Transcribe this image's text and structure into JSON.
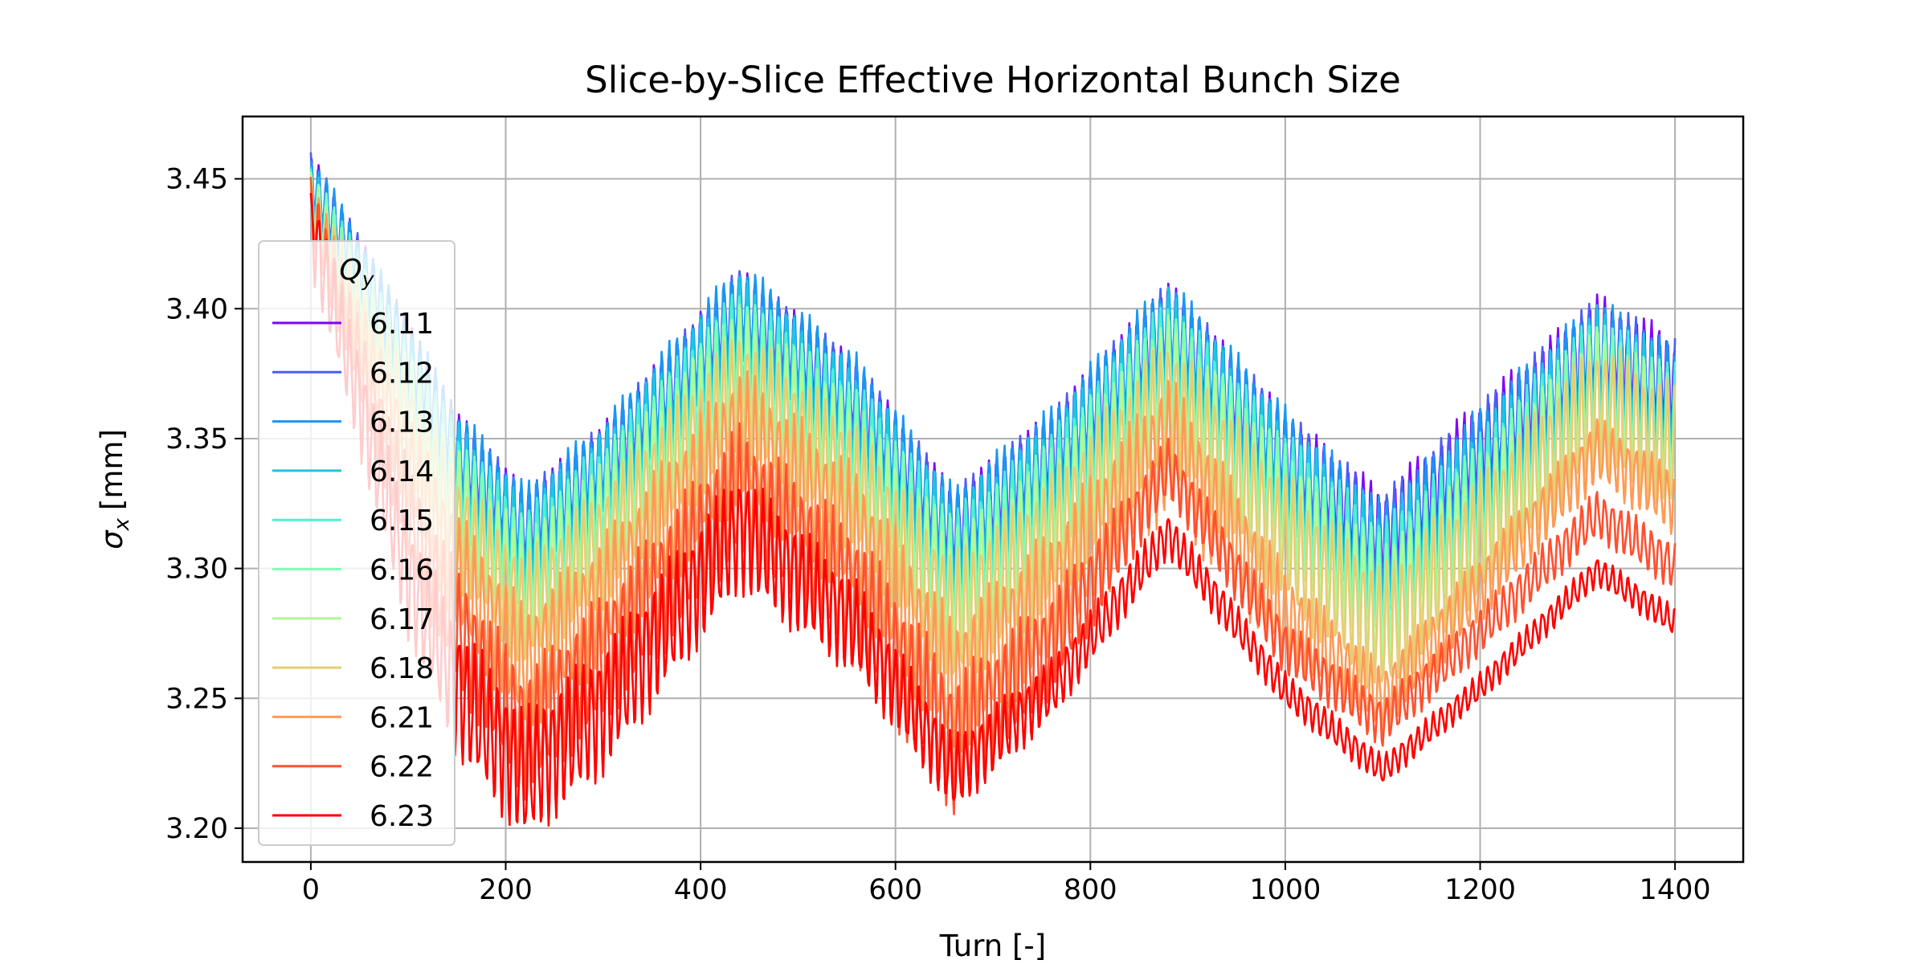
{
  "chart_data": {
    "type": "line",
    "title": "Slice-by-Slice Effective Horizontal Bunch Size",
    "xlabel": "Turn [-]",
    "ylabel_symbol": "σ",
    "ylabel_subscript": "x",
    "ylabel_unit": "[mm]",
    "xlim": [
      -70,
      1470
    ],
    "ylim": [
      3.187,
      3.474
    ],
    "xticks": [
      0,
      200,
      400,
      600,
      800,
      1000,
      1200,
      1400
    ],
    "xtick_labels": [
      "0",
      "200",
      "400",
      "600",
      "800",
      "1000",
      "1200",
      "1400"
    ],
    "yticks": [
      3.2,
      3.25,
      3.3,
      3.35,
      3.4,
      3.45
    ],
    "ytick_labels": [
      "3.20",
      "3.25",
      "3.30",
      "3.35",
      "3.40",
      "3.45"
    ],
    "grid": true,
    "legend": {
      "title_symbol": "Q",
      "title_subscript": "y",
      "placement": "left"
    },
    "oscillation": {
      "period_turns": 8,
      "note_amplitude_in_mm": "band half-width"
    },
    "series": [
      {
        "name": "6.11",
        "color": "#8000ff",
        "upper": [
          [
            0,
            3.46
          ],
          [
            100,
            3.395
          ],
          [
            150,
            3.36
          ],
          [
            220,
            3.33
          ],
          [
            300,
            3.355
          ],
          [
            440,
            3.415
          ],
          [
            560,
            3.38
          ],
          [
            660,
            3.33
          ],
          [
            760,
            3.36
          ],
          [
            880,
            3.41
          ],
          [
            1000,
            3.36
          ],
          [
            1100,
            3.33
          ],
          [
            1200,
            3.365
          ],
          [
            1320,
            3.405
          ],
          [
            1400,
            3.39
          ]
        ],
        "band": [
          [
            0,
            0.02
          ],
          [
            150,
            0.026
          ],
          [
            440,
            0.025
          ],
          [
            660,
            0.027
          ],
          [
            880,
            0.028
          ],
          [
            1100,
            0.03
          ],
          [
            1320,
            0.032
          ],
          [
            1400,
            0.032
          ]
        ]
      },
      {
        "name": "6.12",
        "color": "#4c5cf7",
        "upper": [
          [
            0,
            3.46
          ],
          [
            100,
            3.395
          ],
          [
            150,
            3.36
          ],
          [
            220,
            3.33
          ],
          [
            300,
            3.355
          ],
          [
            440,
            3.415
          ],
          [
            560,
            3.38
          ],
          [
            660,
            3.33
          ],
          [
            760,
            3.36
          ],
          [
            880,
            3.41
          ],
          [
            1000,
            3.36
          ],
          [
            1100,
            3.328
          ],
          [
            1200,
            3.363
          ],
          [
            1320,
            3.404
          ],
          [
            1400,
            3.388
          ]
        ],
        "band": [
          [
            0,
            0.02
          ],
          [
            150,
            0.028
          ],
          [
            440,
            0.028
          ],
          [
            660,
            0.03
          ],
          [
            880,
            0.03
          ],
          [
            1100,
            0.032
          ],
          [
            1320,
            0.034
          ],
          [
            1400,
            0.034
          ]
        ]
      },
      {
        "name": "6.13",
        "color": "#1996f3",
        "upper": [
          [
            0,
            3.461
          ],
          [
            100,
            3.396
          ],
          [
            150,
            3.362
          ],
          [
            220,
            3.332
          ],
          [
            300,
            3.357
          ],
          [
            440,
            3.418
          ],
          [
            560,
            3.382
          ],
          [
            660,
            3.331
          ],
          [
            760,
            3.362
          ],
          [
            880,
            3.412
          ],
          [
            1000,
            3.362
          ],
          [
            1100,
            3.325
          ],
          [
            1200,
            3.362
          ],
          [
            1320,
            3.404
          ],
          [
            1400,
            3.385
          ]
        ],
        "band": [
          [
            0,
            0.02
          ],
          [
            150,
            0.03
          ],
          [
            440,
            0.03
          ],
          [
            660,
            0.032
          ],
          [
            880,
            0.032
          ],
          [
            1100,
            0.034
          ],
          [
            1320,
            0.035
          ],
          [
            1400,
            0.035
          ]
        ]
      },
      {
        "name": "6.14",
        "color": "#1ac7e2",
        "upper": [
          [
            0,
            3.455
          ],
          [
            100,
            3.39
          ],
          [
            150,
            3.356
          ],
          [
            220,
            3.326
          ],
          [
            300,
            3.352
          ],
          [
            440,
            3.412
          ],
          [
            560,
            3.376
          ],
          [
            660,
            3.326
          ],
          [
            760,
            3.356
          ],
          [
            880,
            3.407
          ],
          [
            1000,
            3.356
          ],
          [
            1100,
            3.322
          ],
          [
            1200,
            3.356
          ],
          [
            1320,
            3.4
          ],
          [
            1400,
            3.382
          ]
        ],
        "band": [
          [
            0,
            0.02
          ],
          [
            150,
            0.03
          ],
          [
            440,
            0.032
          ],
          [
            660,
            0.034
          ],
          [
            880,
            0.034
          ],
          [
            1100,
            0.035
          ],
          [
            1320,
            0.036
          ],
          [
            1400,
            0.036
          ]
        ]
      },
      {
        "name": "6.15",
        "color": "#4df0d2",
        "upper": [
          [
            0,
            3.455
          ],
          [
            100,
            3.388
          ],
          [
            150,
            3.353
          ],
          [
            220,
            3.322
          ],
          [
            300,
            3.348
          ],
          [
            440,
            3.408
          ],
          [
            560,
            3.372
          ],
          [
            660,
            3.322
          ],
          [
            760,
            3.352
          ],
          [
            880,
            3.404
          ],
          [
            1000,
            3.352
          ],
          [
            1100,
            3.318
          ],
          [
            1200,
            3.352
          ],
          [
            1320,
            3.398
          ],
          [
            1400,
            3.378
          ]
        ],
        "band": [
          [
            0,
            0.02
          ],
          [
            150,
            0.032
          ],
          [
            440,
            0.035
          ],
          [
            660,
            0.036
          ],
          [
            880,
            0.036
          ],
          [
            1100,
            0.036
          ],
          [
            1320,
            0.038
          ],
          [
            1400,
            0.038
          ]
        ]
      },
      {
        "name": "6.16",
        "color": "#80ffb4",
        "upper": [
          [
            0,
            3.455
          ],
          [
            100,
            3.386
          ],
          [
            150,
            3.35
          ],
          [
            220,
            3.318
          ],
          [
            300,
            3.345
          ],
          [
            440,
            3.405
          ],
          [
            560,
            3.368
          ],
          [
            660,
            3.318
          ],
          [
            760,
            3.348
          ],
          [
            880,
            3.4
          ],
          [
            1000,
            3.348
          ],
          [
            1100,
            3.312
          ],
          [
            1200,
            3.348
          ],
          [
            1320,
            3.395
          ],
          [
            1400,
            3.375
          ]
        ],
        "band": [
          [
            0,
            0.02
          ],
          [
            150,
            0.034
          ],
          [
            440,
            0.038
          ],
          [
            660,
            0.038
          ],
          [
            880,
            0.038
          ],
          [
            1100,
            0.038
          ],
          [
            1320,
            0.04
          ],
          [
            1400,
            0.04
          ]
        ]
      },
      {
        "name": "6.17",
        "color": "#b2f896",
        "upper": [
          [
            0,
            3.452
          ],
          [
            100,
            3.382
          ],
          [
            150,
            3.345
          ],
          [
            220,
            3.312
          ],
          [
            300,
            3.34
          ],
          [
            440,
            3.4
          ],
          [
            560,
            3.362
          ],
          [
            660,
            3.312
          ],
          [
            760,
            3.342
          ],
          [
            880,
            3.396
          ],
          [
            1000,
            3.342
          ],
          [
            1100,
            3.305
          ],
          [
            1200,
            3.342
          ],
          [
            1320,
            3.392
          ],
          [
            1400,
            3.372
          ]
        ],
        "band": [
          [
            0,
            0.02
          ],
          [
            150,
            0.036
          ],
          [
            440,
            0.04
          ],
          [
            660,
            0.04
          ],
          [
            880,
            0.04
          ],
          [
            1100,
            0.04
          ],
          [
            1320,
            0.04
          ],
          [
            1400,
            0.04
          ]
        ]
      },
      {
        "name": "6.18",
        "color": "#e6cd73",
        "upper": [
          [
            0,
            3.45
          ],
          [
            100,
            3.375
          ],
          [
            150,
            3.338
          ],
          [
            220,
            3.305
          ],
          [
            300,
            3.332
          ],
          [
            440,
            3.393
          ],
          [
            560,
            3.356
          ],
          [
            660,
            3.305
          ],
          [
            760,
            3.336
          ],
          [
            880,
            3.39
          ],
          [
            1000,
            3.336
          ],
          [
            1100,
            3.3
          ],
          [
            1200,
            3.336
          ],
          [
            1320,
            3.388
          ],
          [
            1400,
            3.37
          ]
        ],
        "band": [
          [
            0,
            0.02
          ],
          [
            150,
            0.038
          ],
          [
            440,
            0.042
          ],
          [
            660,
            0.045
          ],
          [
            880,
            0.044
          ],
          [
            1100,
            0.044
          ],
          [
            1320,
            0.044
          ],
          [
            1400,
            0.044
          ]
        ]
      },
      {
        "name": "6.21",
        "color": "#ff9a55",
        "upper": [
          [
            0,
            3.45
          ],
          [
            100,
            3.36
          ],
          [
            150,
            3.322
          ],
          [
            220,
            3.285
          ],
          [
            300,
            3.312
          ],
          [
            440,
            3.378
          ],
          [
            560,
            3.338
          ],
          [
            660,
            3.28
          ],
          [
            760,
            3.315
          ],
          [
            880,
            3.375
          ],
          [
            1000,
            3.3
          ],
          [
            1100,
            3.262
          ],
          [
            1200,
            3.305
          ],
          [
            1320,
            3.358
          ],
          [
            1400,
            3.338
          ]
        ],
        "band": [
          [
            0,
            0.02
          ],
          [
            150,
            0.04
          ],
          [
            440,
            0.045
          ],
          [
            660,
            0.045
          ],
          [
            880,
            0.045
          ],
          [
            1100,
            0.022
          ],
          [
            1320,
            0.022
          ],
          [
            1400,
            0.022
          ]
        ]
      },
      {
        "name": "6.22",
        "color": "#ff5030",
        "upper": [
          [
            0,
            3.45
          ],
          [
            100,
            3.34
          ],
          [
            150,
            3.3
          ],
          [
            220,
            3.26
          ],
          [
            300,
            3.29
          ],
          [
            440,
            3.355
          ],
          [
            560,
            3.315
          ],
          [
            660,
            3.258
          ],
          [
            760,
            3.29
          ],
          [
            880,
            3.35
          ],
          [
            1000,
            3.28
          ],
          [
            1100,
            3.25
          ],
          [
            1200,
            3.285
          ],
          [
            1320,
            3.33
          ],
          [
            1400,
            3.31
          ]
        ],
        "band": [
          [
            0,
            0.02
          ],
          [
            150,
            0.04
          ],
          [
            440,
            0.045
          ],
          [
            660,
            0.045
          ],
          [
            880,
            0.02
          ],
          [
            1100,
            0.016
          ],
          [
            1320,
            0.016
          ],
          [
            1400,
            0.016
          ]
        ]
      },
      {
        "name": "6.23",
        "color": "#ff0000",
        "upper": [
          [
            0,
            3.45
          ],
          [
            100,
            3.32
          ],
          [
            150,
            3.28
          ],
          [
            220,
            3.245
          ],
          [
            300,
            3.27
          ],
          [
            440,
            3.338
          ],
          [
            560,
            3.295
          ],
          [
            660,
            3.235
          ],
          [
            760,
            3.265
          ],
          [
            880,
            3.322
          ],
          [
            1000,
            3.26
          ],
          [
            1100,
            3.228
          ],
          [
            1200,
            3.26
          ],
          [
            1320,
            3.305
          ],
          [
            1400,
            3.285
          ]
        ],
        "band": [
          [
            0,
            0.03
          ],
          [
            150,
            0.045
          ],
          [
            440,
            0.04
          ],
          [
            660,
            0.025
          ],
          [
            880,
            0.015
          ],
          [
            1100,
            0.01
          ],
          [
            1320,
            0.01
          ],
          [
            1400,
            0.01
          ]
        ]
      }
    ]
  }
}
